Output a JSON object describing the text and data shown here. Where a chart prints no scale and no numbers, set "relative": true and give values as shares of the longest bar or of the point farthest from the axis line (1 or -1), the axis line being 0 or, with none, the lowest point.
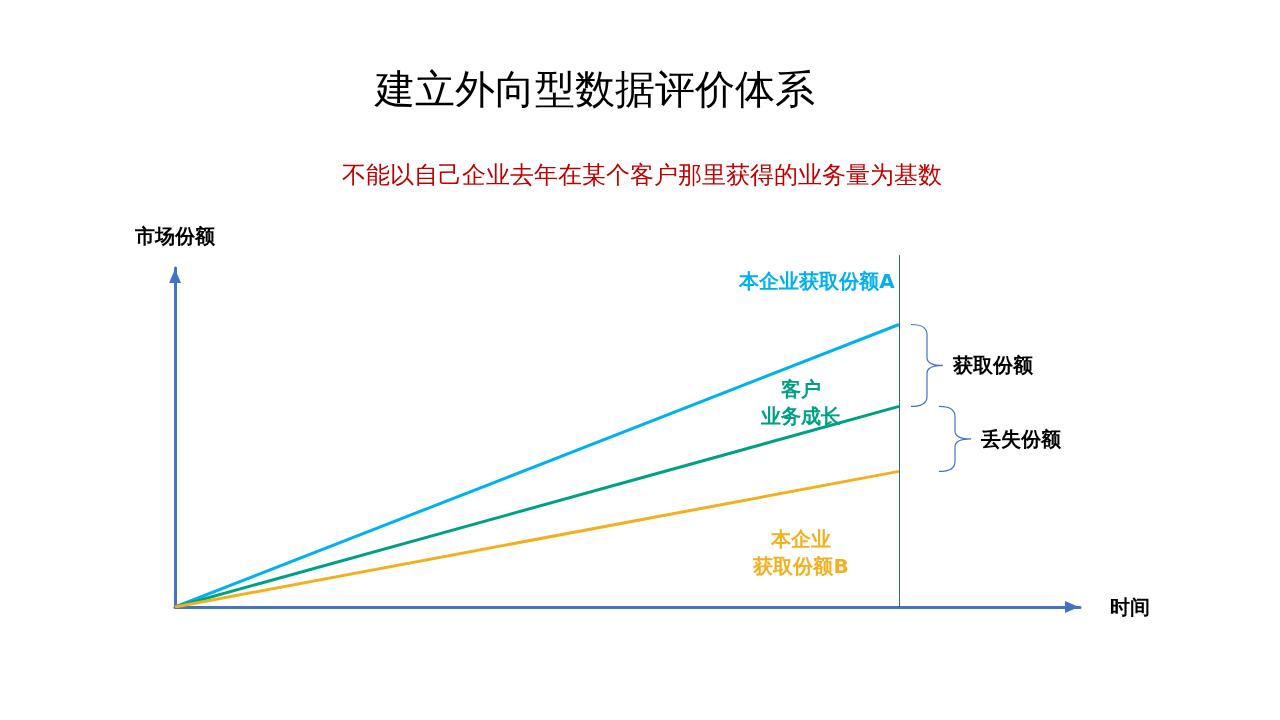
{
  "chart_data": {
    "type": "line",
    "title": "建立外向型数据评价体系",
    "subtitle": "不能以自己企业去年在某个客户那里获得的业务量为基数",
    "xlabel": "时间",
    "ylabel": "市场份额",
    "relative": true,
    "categories": [
      null,
      null,
      null,
      null,
      null,
      null
    ],
    "series": [
      {
        "name": "本企业获取份额A",
        "color": "#00b0f0",
        "values": [
          0,
          null,
          null,
          null,
          1,
          null
        ]
      },
      {
        "name": "客户业务成长",
        "color": "#00a085",
        "values": [
          0,
          null,
          null,
          null,
          0.71,
          null
        ]
      },
      {
        "name": "本企业获取份额B",
        "color": "#f2b01e",
        "values": [
          0,
          null,
          null,
          null,
          0.48,
          null
        ]
      }
    ],
    "annotations": [
      "获取份额",
      "丢失份额"
    ],
    "marker": "none",
    "grid": false
  }
}
